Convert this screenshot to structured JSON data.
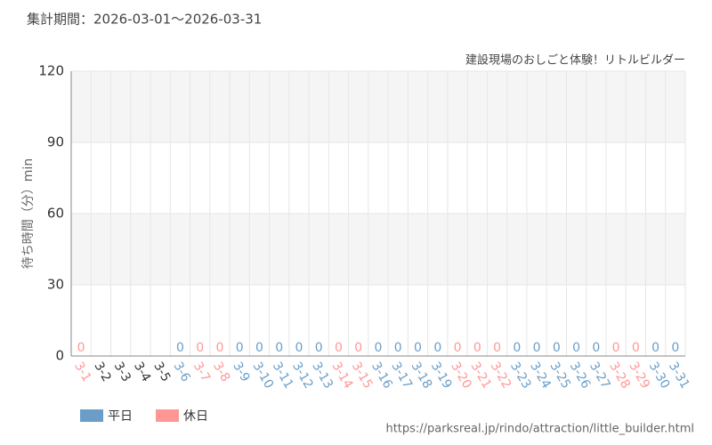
{
  "chart_data": {
    "type": "bar",
    "header": "集計期間：2026-03-01～2026-03-31",
    "title": "建設現場のおしごと体験！リトルビルダー",
    "y_label": "待ち時間（分）min",
    "source": "https://parksreal.jp/rindo/attraction/little_builder.html",
    "categories": [
      "3-1",
      "3-2",
      "3-3",
      "3-4",
      "3-5",
      "3-6",
      "3-7",
      "3-8",
      "3-9",
      "3-10",
      "3-11",
      "3-12",
      "3-13",
      "3-14",
      "3-15",
      "3-16",
      "3-17",
      "3-18",
      "3-19",
      "3-20",
      "3-21",
      "3-22",
      "3-23",
      "3-24",
      "3-25",
      "3-26",
      "3-27",
      "3-28",
      "3-29",
      "3-30",
      "3-31"
    ],
    "series": [
      {
        "name": "平日",
        "color": "#6a9ec8",
        "values": [
          null,
          null,
          null,
          null,
          null,
          0,
          null,
          null,
          0,
          0,
          0,
          0,
          0,
          null,
          null,
          0,
          0,
          0,
          0,
          null,
          null,
          null,
          0,
          0,
          0,
          0,
          0,
          null,
          null,
          0,
          0
        ]
      },
      {
        "name": "休日",
        "color": "#ff9797",
        "values": [
          0,
          null,
          null,
          null,
          null,
          null,
          0,
          0,
          null,
          null,
          null,
          null,
          null,
          0,
          0,
          null,
          null,
          null,
          null,
          0,
          0,
          0,
          null,
          null,
          null,
          null,
          null,
          0,
          0,
          null,
          null
        ]
      }
    ],
    "ylim": [
      0,
      120
    ],
    "yticks": [
      0,
      30,
      60,
      90,
      120
    ],
    "grid": true
  }
}
